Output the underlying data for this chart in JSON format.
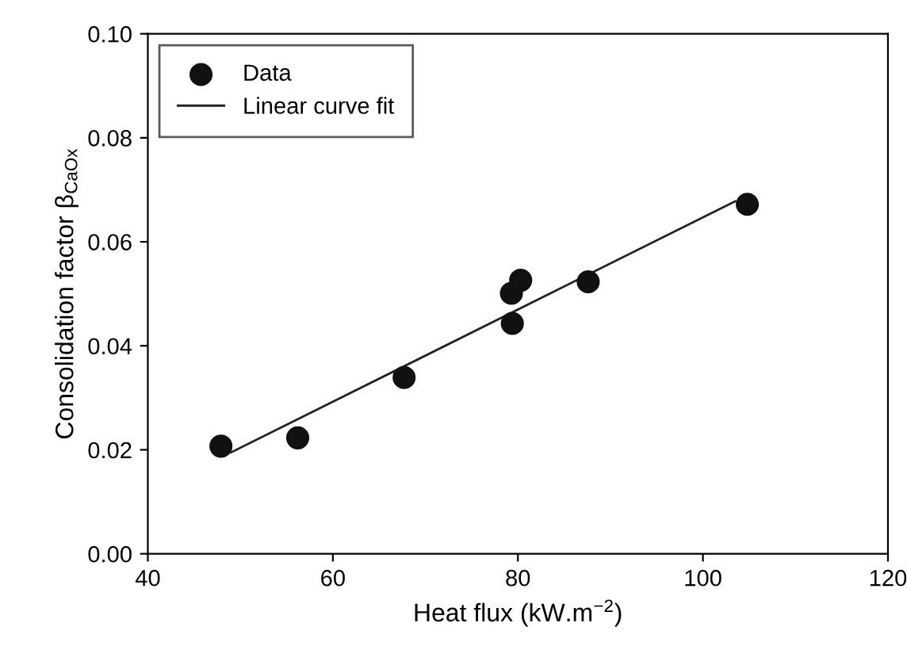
{
  "chart_data": {
    "type": "scatter",
    "xlabel": "Heat flux (kW.m$^{−2}$)",
    "ylabel": "Consolidation factor β$_{CaOx}$",
    "xlim": [
      40,
      120
    ],
    "xticks": [
      40,
      60,
      80,
      100,
      120
    ],
    "ylim": [
      0,
      0.1
    ],
    "yticks": [
      {
        "value": 0,
        "label": "0.00"
      },
      0.02,
      0.04,
      0.06,
      0.08,
      {
        "value": 0.1,
        "label": "0.10"
      }
    ],
    "legend": "top left",
    "grid": false,
    "series": [
      {
        "name": "Data",
        "marker": "circle",
        "color": "#111111",
        "x": [
          47.9,
          56.2,
          67.7,
          79.3,
          80.3,
          79.4,
          87.6,
          104.8
        ],
        "values": [
          0.0207,
          0.0223,
          0.0339,
          0.0501,
          0.0526,
          0.0443,
          0.0523,
          0.0672
        ]
      },
      {
        "name": "Linear curve fit",
        "type": "line",
        "marker": "none",
        "color": "#222222",
        "x": [
          49,
          103.5
        ],
        "values": [
          0.0195,
          0.0678
        ]
      }
    ]
  }
}
